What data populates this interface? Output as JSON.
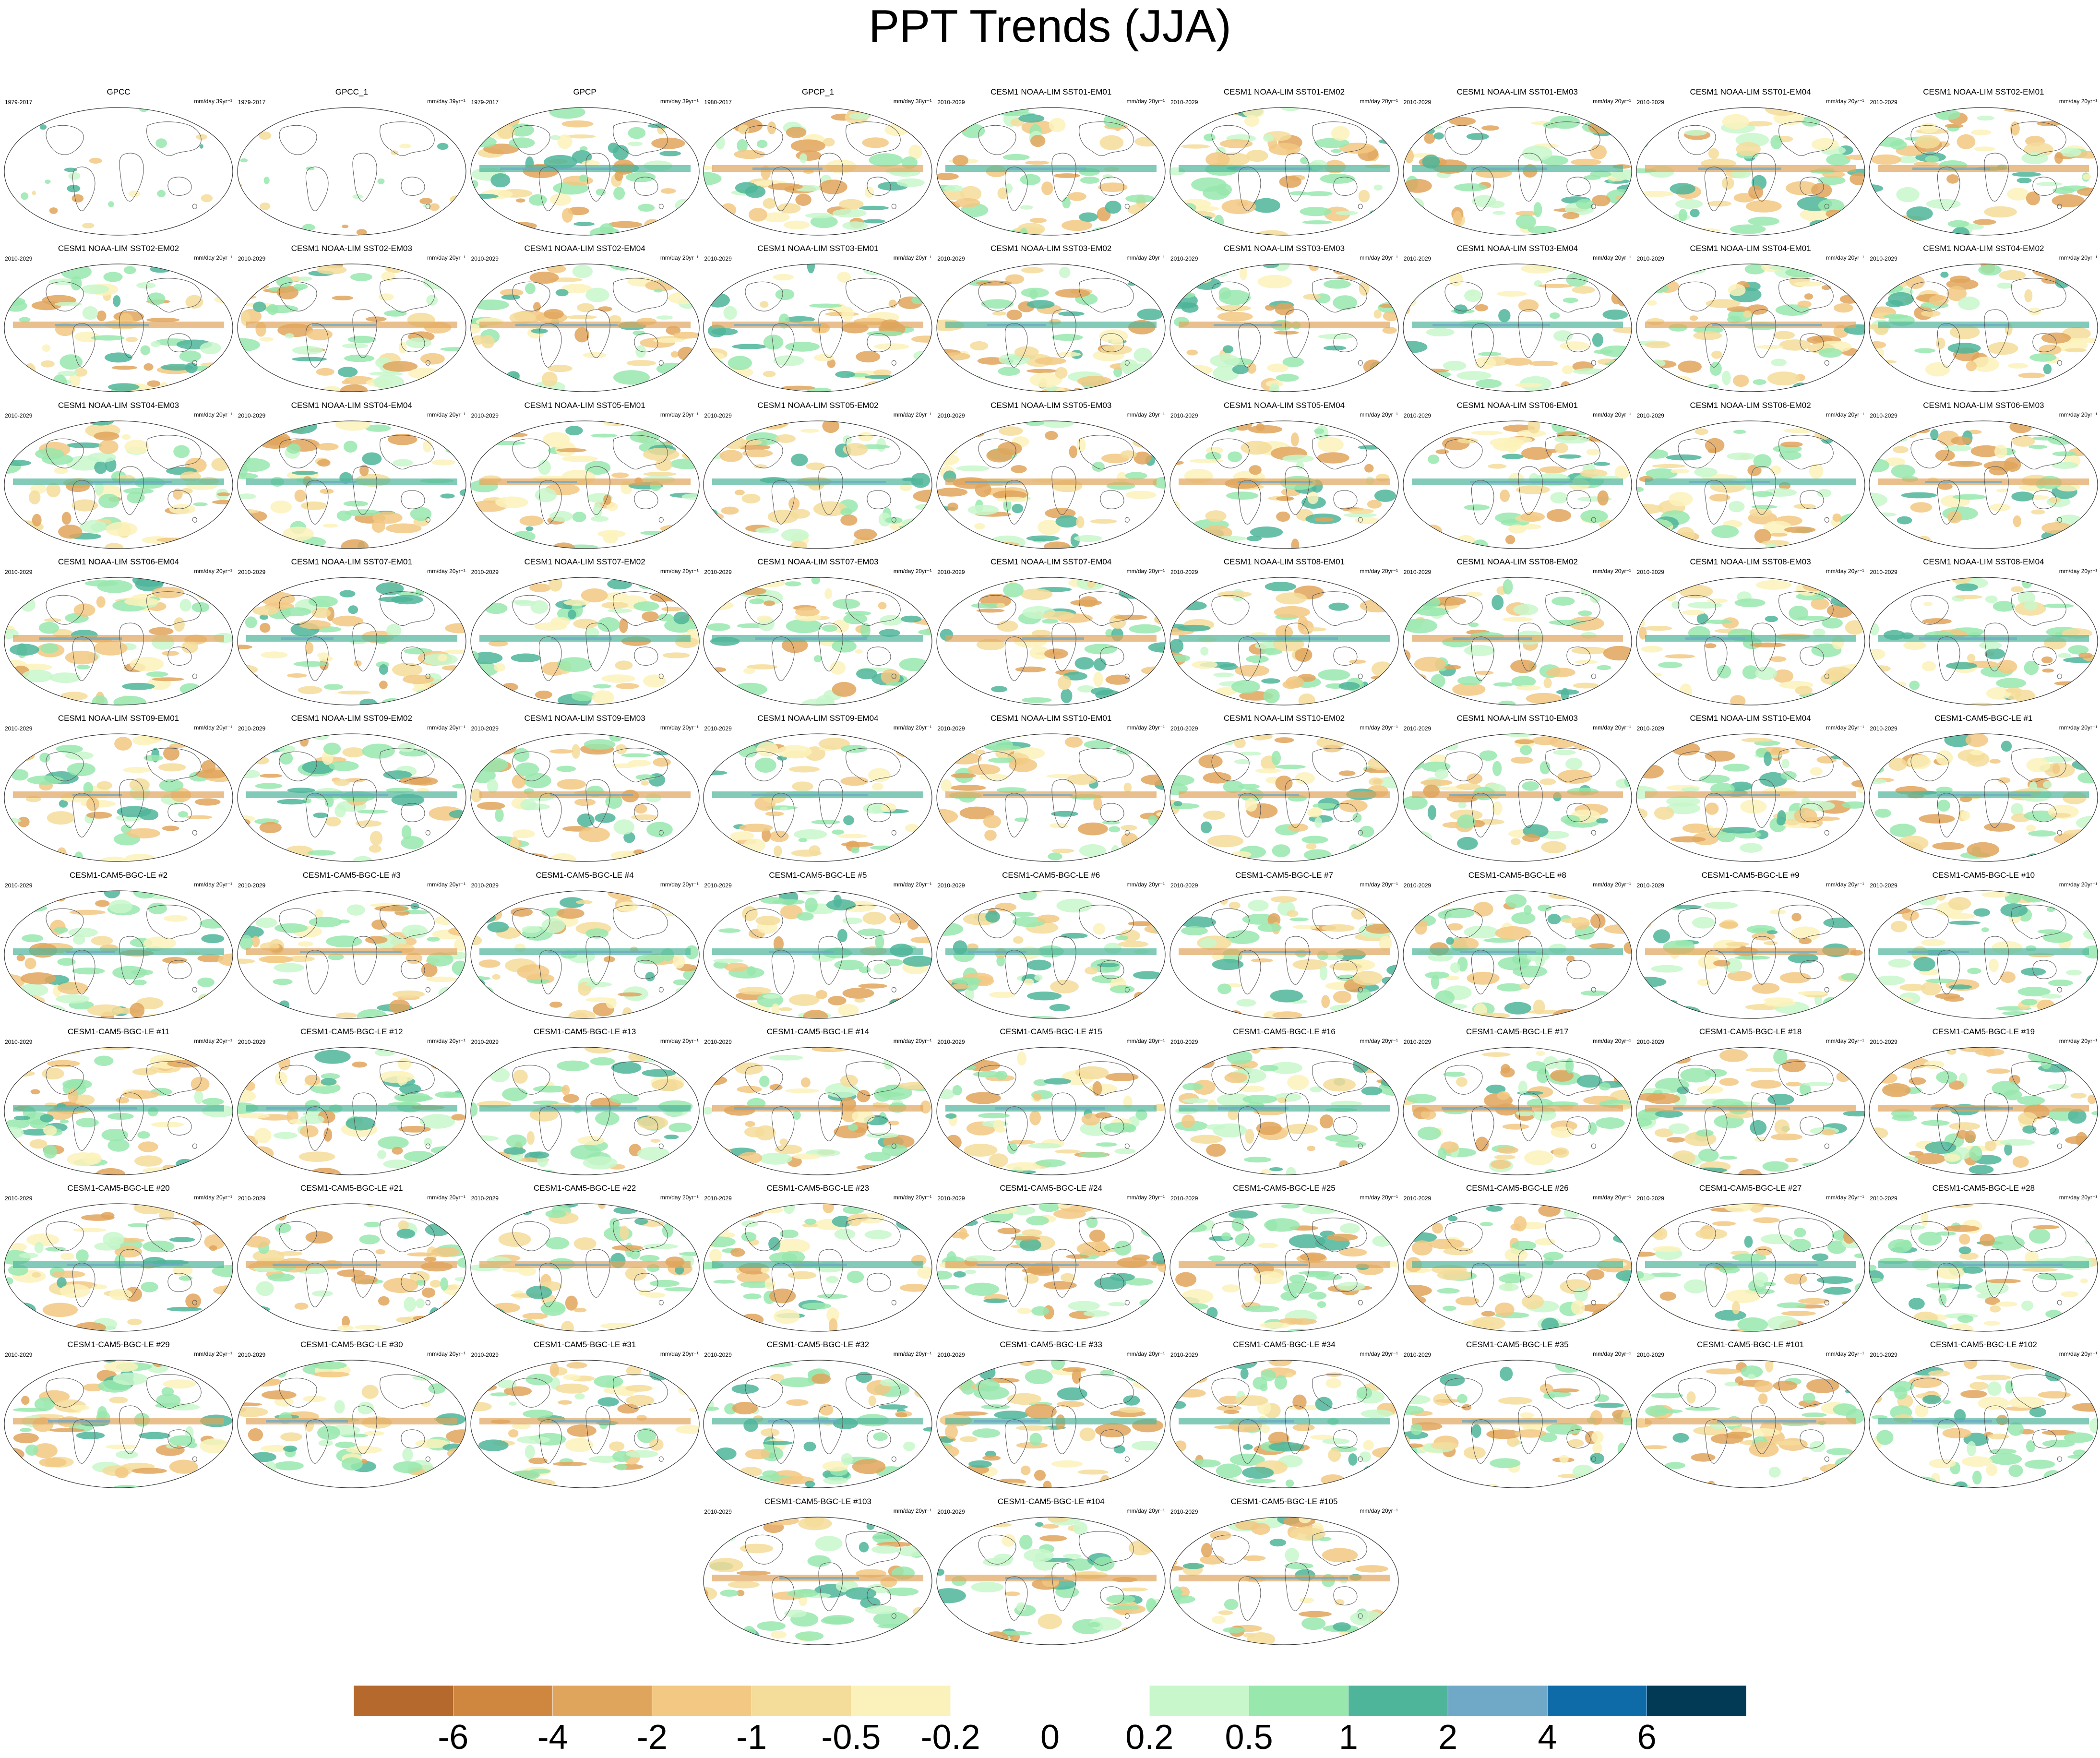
{
  "title": "PPT Trends (JJA)",
  "chart_data": {
    "type": "heatmap",
    "title": "PPT Trends (JJA)",
    "variable": "precipitation trend",
    "season": "JJA",
    "projection": "global ellipse map, land outlines",
    "panel_layout": {
      "columns": 9,
      "rows": 10,
      "last_row_centered": true
    },
    "colorbar": {
      "labels": [
        "-6",
        "-4",
        "-2",
        "-1",
        "-0.5",
        "-0.2",
        "0",
        "0.2",
        "0.5",
        "1",
        "2",
        "4",
        "6"
      ],
      "colors": [
        "#b5692c",
        "#cf863f",
        "#e0a55c",
        "#f2c882",
        "#f4dc9a",
        "#fbf2bb",
        "#ffffff",
        "#ffffff",
        "#c8f7cb",
        "#98e8ae",
        "#4fb59a",
        "#6fa9c7",
        "#0f6aa8",
        "#023a56"
      ]
    },
    "panels": [
      {
        "name": "GPCC",
        "period": "1979-2017",
        "units": "mm/day 39yr⁻¹"
      },
      {
        "name": "GPCC_1",
        "period": "1979-2017",
        "units": "mm/day 39yr⁻¹"
      },
      {
        "name": "GPCP",
        "period": "1979-2017",
        "units": "mm/day 39yr⁻¹"
      },
      {
        "name": "GPCP_1",
        "period": "1980-2017",
        "units": "mm/day 38yr⁻¹"
      },
      {
        "name": "CESM1 NOAA-LIM SST01-EM01",
        "period": "2010-2029",
        "units": "mm/day 20yr⁻¹"
      },
      {
        "name": "CESM1 NOAA-LIM SST01-EM02",
        "period": "2010-2029",
        "units": "mm/day 20yr⁻¹"
      },
      {
        "name": "CESM1 NOAA-LIM SST01-EM03",
        "period": "2010-2029",
        "units": "mm/day 20yr⁻¹"
      },
      {
        "name": "CESM1 NOAA-LIM SST01-EM04",
        "period": "2010-2029",
        "units": "mm/day 20yr⁻¹"
      },
      {
        "name": "CESM1 NOAA-LIM SST02-EM01",
        "period": "2010-2029",
        "units": "mm/day 20yr⁻¹"
      },
      {
        "name": "CESM1 NOAA-LIM SST02-EM02",
        "period": "2010-2029",
        "units": "mm/day 20yr⁻¹"
      },
      {
        "name": "CESM1 NOAA-LIM SST02-EM03",
        "period": "2010-2029",
        "units": "mm/day 20yr⁻¹"
      },
      {
        "name": "CESM1 NOAA-LIM SST02-EM04",
        "period": "2010-2029",
        "units": "mm/day 20yr⁻¹"
      },
      {
        "name": "CESM1 NOAA-LIM SST03-EM01",
        "period": "2010-2029",
        "units": "mm/day 20yr⁻¹"
      },
      {
        "name": "CESM1 NOAA-LIM SST03-EM02",
        "period": "2010-2029",
        "units": "mm/day 20yr⁻¹"
      },
      {
        "name": "CESM1 NOAA-LIM SST03-EM03",
        "period": "2010-2029",
        "units": "mm/day 20yr⁻¹"
      },
      {
        "name": "CESM1 NOAA-LIM SST03-EM04",
        "period": "2010-2029",
        "units": "mm/day 20yr⁻¹"
      },
      {
        "name": "CESM1 NOAA-LIM SST04-EM01",
        "period": "2010-2029",
        "units": "mm/day 20yr⁻¹"
      },
      {
        "name": "CESM1 NOAA-LIM SST04-EM02",
        "period": "2010-2029",
        "units": "mm/day 20yr⁻¹"
      },
      {
        "name": "CESM1 NOAA-LIM SST04-EM03",
        "period": "2010-2029",
        "units": "mm/day 20yr⁻¹"
      },
      {
        "name": "CESM1 NOAA-LIM SST04-EM04",
        "period": "2010-2029",
        "units": "mm/day 20yr⁻¹"
      },
      {
        "name": "CESM1 NOAA-LIM SST05-EM01",
        "period": "2010-2029",
        "units": "mm/day 20yr⁻¹"
      },
      {
        "name": "CESM1 NOAA-LIM SST05-EM02",
        "period": "2010-2029",
        "units": "mm/day 20yr⁻¹"
      },
      {
        "name": "CESM1 NOAA-LIM SST05-EM03",
        "period": "2010-2029",
        "units": "mm/day 20yr⁻¹"
      },
      {
        "name": "CESM1 NOAA-LIM SST05-EM04",
        "period": "2010-2029",
        "units": "mm/day 20yr⁻¹"
      },
      {
        "name": "CESM1 NOAA-LIM SST06-EM01",
        "period": "2010-2029",
        "units": "mm/day 20yr⁻¹"
      },
      {
        "name": "CESM1 NOAA-LIM SST06-EM02",
        "period": "2010-2029",
        "units": "mm/day 20yr⁻¹"
      },
      {
        "name": "CESM1 NOAA-LIM SST06-EM03",
        "period": "2010-2029",
        "units": "mm/day 20yr⁻¹"
      },
      {
        "name": "CESM1 NOAA-LIM SST06-EM04",
        "period": "2010-2029",
        "units": "mm/day 20yr⁻¹"
      },
      {
        "name": "CESM1 NOAA-LIM SST07-EM01",
        "period": "2010-2029",
        "units": "mm/day 20yr⁻¹"
      },
      {
        "name": "CESM1 NOAA-LIM SST07-EM02",
        "period": "2010-2029",
        "units": "mm/day 20yr⁻¹"
      },
      {
        "name": "CESM1 NOAA-LIM SST07-EM03",
        "period": "2010-2029",
        "units": "mm/day 20yr⁻¹"
      },
      {
        "name": "CESM1 NOAA-LIM SST07-EM04",
        "period": "2010-2029",
        "units": "mm/day 20yr⁻¹"
      },
      {
        "name": "CESM1 NOAA-LIM SST08-EM01",
        "period": "2010-2029",
        "units": "mm/day 20yr⁻¹"
      },
      {
        "name": "CESM1 NOAA-LIM SST08-EM02",
        "period": "2010-2029",
        "units": "mm/day 20yr⁻¹"
      },
      {
        "name": "CESM1 NOAA-LIM SST08-EM03",
        "period": "2010-2029",
        "units": "mm/day 20yr⁻¹"
      },
      {
        "name": "CESM1 NOAA-LIM SST08-EM04",
        "period": "2010-2029",
        "units": "mm/day 20yr⁻¹"
      },
      {
        "name": "CESM1 NOAA-LIM SST09-EM01",
        "period": "2010-2029",
        "units": "mm/day 20yr⁻¹"
      },
      {
        "name": "CESM1 NOAA-LIM SST09-EM02",
        "period": "2010-2029",
        "units": "mm/day 20yr⁻¹"
      },
      {
        "name": "CESM1 NOAA-LIM SST09-EM03",
        "period": "2010-2029",
        "units": "mm/day 20yr⁻¹"
      },
      {
        "name": "CESM1 NOAA-LIM SST09-EM04",
        "period": "2010-2029",
        "units": "mm/day 20yr⁻¹"
      },
      {
        "name": "CESM1 NOAA-LIM SST10-EM01",
        "period": "2010-2029",
        "units": "mm/day 20yr⁻¹"
      },
      {
        "name": "CESM1 NOAA-LIM SST10-EM02",
        "period": "2010-2029",
        "units": "mm/day 20yr⁻¹"
      },
      {
        "name": "CESM1 NOAA-LIM SST10-EM03",
        "period": "2010-2029",
        "units": "mm/day 20yr⁻¹"
      },
      {
        "name": "CESM1 NOAA-LIM SST10-EM04",
        "period": "2010-2029",
        "units": "mm/day 20yr⁻¹"
      },
      {
        "name": "CESM1-CAM5-BGC-LE #1",
        "period": "2010-2029",
        "units": "mm/day 20yr⁻¹"
      },
      {
        "name": "CESM1-CAM5-BGC-LE #2",
        "period": "2010-2029",
        "units": "mm/day 20yr⁻¹"
      },
      {
        "name": "CESM1-CAM5-BGC-LE #3",
        "period": "2010-2029",
        "units": "mm/day 20yr⁻¹"
      },
      {
        "name": "CESM1-CAM5-BGC-LE #4",
        "period": "2010-2029",
        "units": "mm/day 20yr⁻¹"
      },
      {
        "name": "CESM1-CAM5-BGC-LE #5",
        "period": "2010-2029",
        "units": "mm/day 20yr⁻¹"
      },
      {
        "name": "CESM1-CAM5-BGC-LE #6",
        "period": "2010-2029",
        "units": "mm/day 20yr⁻¹"
      },
      {
        "name": "CESM1-CAM5-BGC-LE #7",
        "period": "2010-2029",
        "units": "mm/day 20yr⁻¹"
      },
      {
        "name": "CESM1-CAM5-BGC-LE #8",
        "period": "2010-2029",
        "units": "mm/day 20yr⁻¹"
      },
      {
        "name": "CESM1-CAM5-BGC-LE #9",
        "period": "2010-2029",
        "units": "mm/day 20yr⁻¹"
      },
      {
        "name": "CESM1-CAM5-BGC-LE #10",
        "period": "2010-2029",
        "units": "mm/day 20yr⁻¹"
      },
      {
        "name": "CESM1-CAM5-BGC-LE #11",
        "period": "2010-2029",
        "units": "mm/day 20yr⁻¹"
      },
      {
        "name": "CESM1-CAM5-BGC-LE #12",
        "period": "2010-2029",
        "units": "mm/day 20yr⁻¹"
      },
      {
        "name": "CESM1-CAM5-BGC-LE #13",
        "period": "2010-2029",
        "units": "mm/day 20yr⁻¹"
      },
      {
        "name": "CESM1-CAM5-BGC-LE #14",
        "period": "2010-2029",
        "units": "mm/day 20yr⁻¹"
      },
      {
        "name": "CESM1-CAM5-BGC-LE #15",
        "period": "2010-2029",
        "units": "mm/day 20yr⁻¹"
      },
      {
        "name": "CESM1-CAM5-BGC-LE #16",
        "period": "2010-2029",
        "units": "mm/day 20yr⁻¹"
      },
      {
        "name": "CESM1-CAM5-BGC-LE #17",
        "period": "2010-2029",
        "units": "mm/day 20yr⁻¹"
      },
      {
        "name": "CESM1-CAM5-BGC-LE #18",
        "period": "2010-2029",
        "units": "mm/day 20yr⁻¹"
      },
      {
        "name": "CESM1-CAM5-BGC-LE #19",
        "period": "2010-2029",
        "units": "mm/day 20yr⁻¹"
      },
      {
        "name": "CESM1-CAM5-BGC-LE #20",
        "period": "2010-2029",
        "units": "mm/day 20yr⁻¹"
      },
      {
        "name": "CESM1-CAM5-BGC-LE #21",
        "period": "2010-2029",
        "units": "mm/day 20yr⁻¹"
      },
      {
        "name": "CESM1-CAM5-BGC-LE #22",
        "period": "2010-2029",
        "units": "mm/day 20yr⁻¹"
      },
      {
        "name": "CESM1-CAM5-BGC-LE #23",
        "period": "2010-2029",
        "units": "mm/day 20yr⁻¹"
      },
      {
        "name": "CESM1-CAM5-BGC-LE #24",
        "period": "2010-2029",
        "units": "mm/day 20yr⁻¹"
      },
      {
        "name": "CESM1-CAM5-BGC-LE #25",
        "period": "2010-2029",
        "units": "mm/day 20yr⁻¹"
      },
      {
        "name": "CESM1-CAM5-BGC-LE #26",
        "period": "2010-2029",
        "units": "mm/day 20yr⁻¹"
      },
      {
        "name": "CESM1-CAM5-BGC-LE #27",
        "period": "2010-2029",
        "units": "mm/day 20yr⁻¹"
      },
      {
        "name": "CESM1-CAM5-BGC-LE #28",
        "period": "2010-2029",
        "units": "mm/day 20yr⁻¹"
      },
      {
        "name": "CESM1-CAM5-BGC-LE #29",
        "period": "2010-2029",
        "units": "mm/day 20yr⁻¹"
      },
      {
        "name": "CESM1-CAM5-BGC-LE #30",
        "period": "2010-2029",
        "units": "mm/day 20yr⁻¹"
      },
      {
        "name": "CESM1-CAM5-BGC-LE #31",
        "period": "2010-2029",
        "units": "mm/day 20yr⁻¹"
      },
      {
        "name": "CESM1-CAM5-BGC-LE #32",
        "period": "2010-2029",
        "units": "mm/day 20yr⁻¹"
      },
      {
        "name": "CESM1-CAM5-BGC-LE #33",
        "period": "2010-2029",
        "units": "mm/day 20yr⁻¹"
      },
      {
        "name": "CESM1-CAM5-BGC-LE #34",
        "period": "2010-2029",
        "units": "mm/day 20yr⁻¹"
      },
      {
        "name": "CESM1-CAM5-BGC-LE #35",
        "period": "2010-2029",
        "units": "mm/day 20yr⁻¹"
      },
      {
        "name": "CESM1-CAM5-BGC-LE #101",
        "period": "2010-2029",
        "units": "mm/day 20yr⁻¹"
      },
      {
        "name": "CESM1-CAM5-BGC-LE #102",
        "period": "2010-2029",
        "units": "mm/day 20yr⁻¹"
      },
      {
        "name": "CESM1-CAM5-BGC-LE #103",
        "period": "2010-2029",
        "units": "mm/day 20yr⁻¹"
      },
      {
        "name": "CESM1-CAM5-BGC-LE #104",
        "period": "2010-2029",
        "units": "mm/day 20yr⁻¹"
      },
      {
        "name": "CESM1-CAM5-BGC-LE #105",
        "period": "2010-2029",
        "units": "mm/day 20yr⁻¹"
      }
    ]
  }
}
